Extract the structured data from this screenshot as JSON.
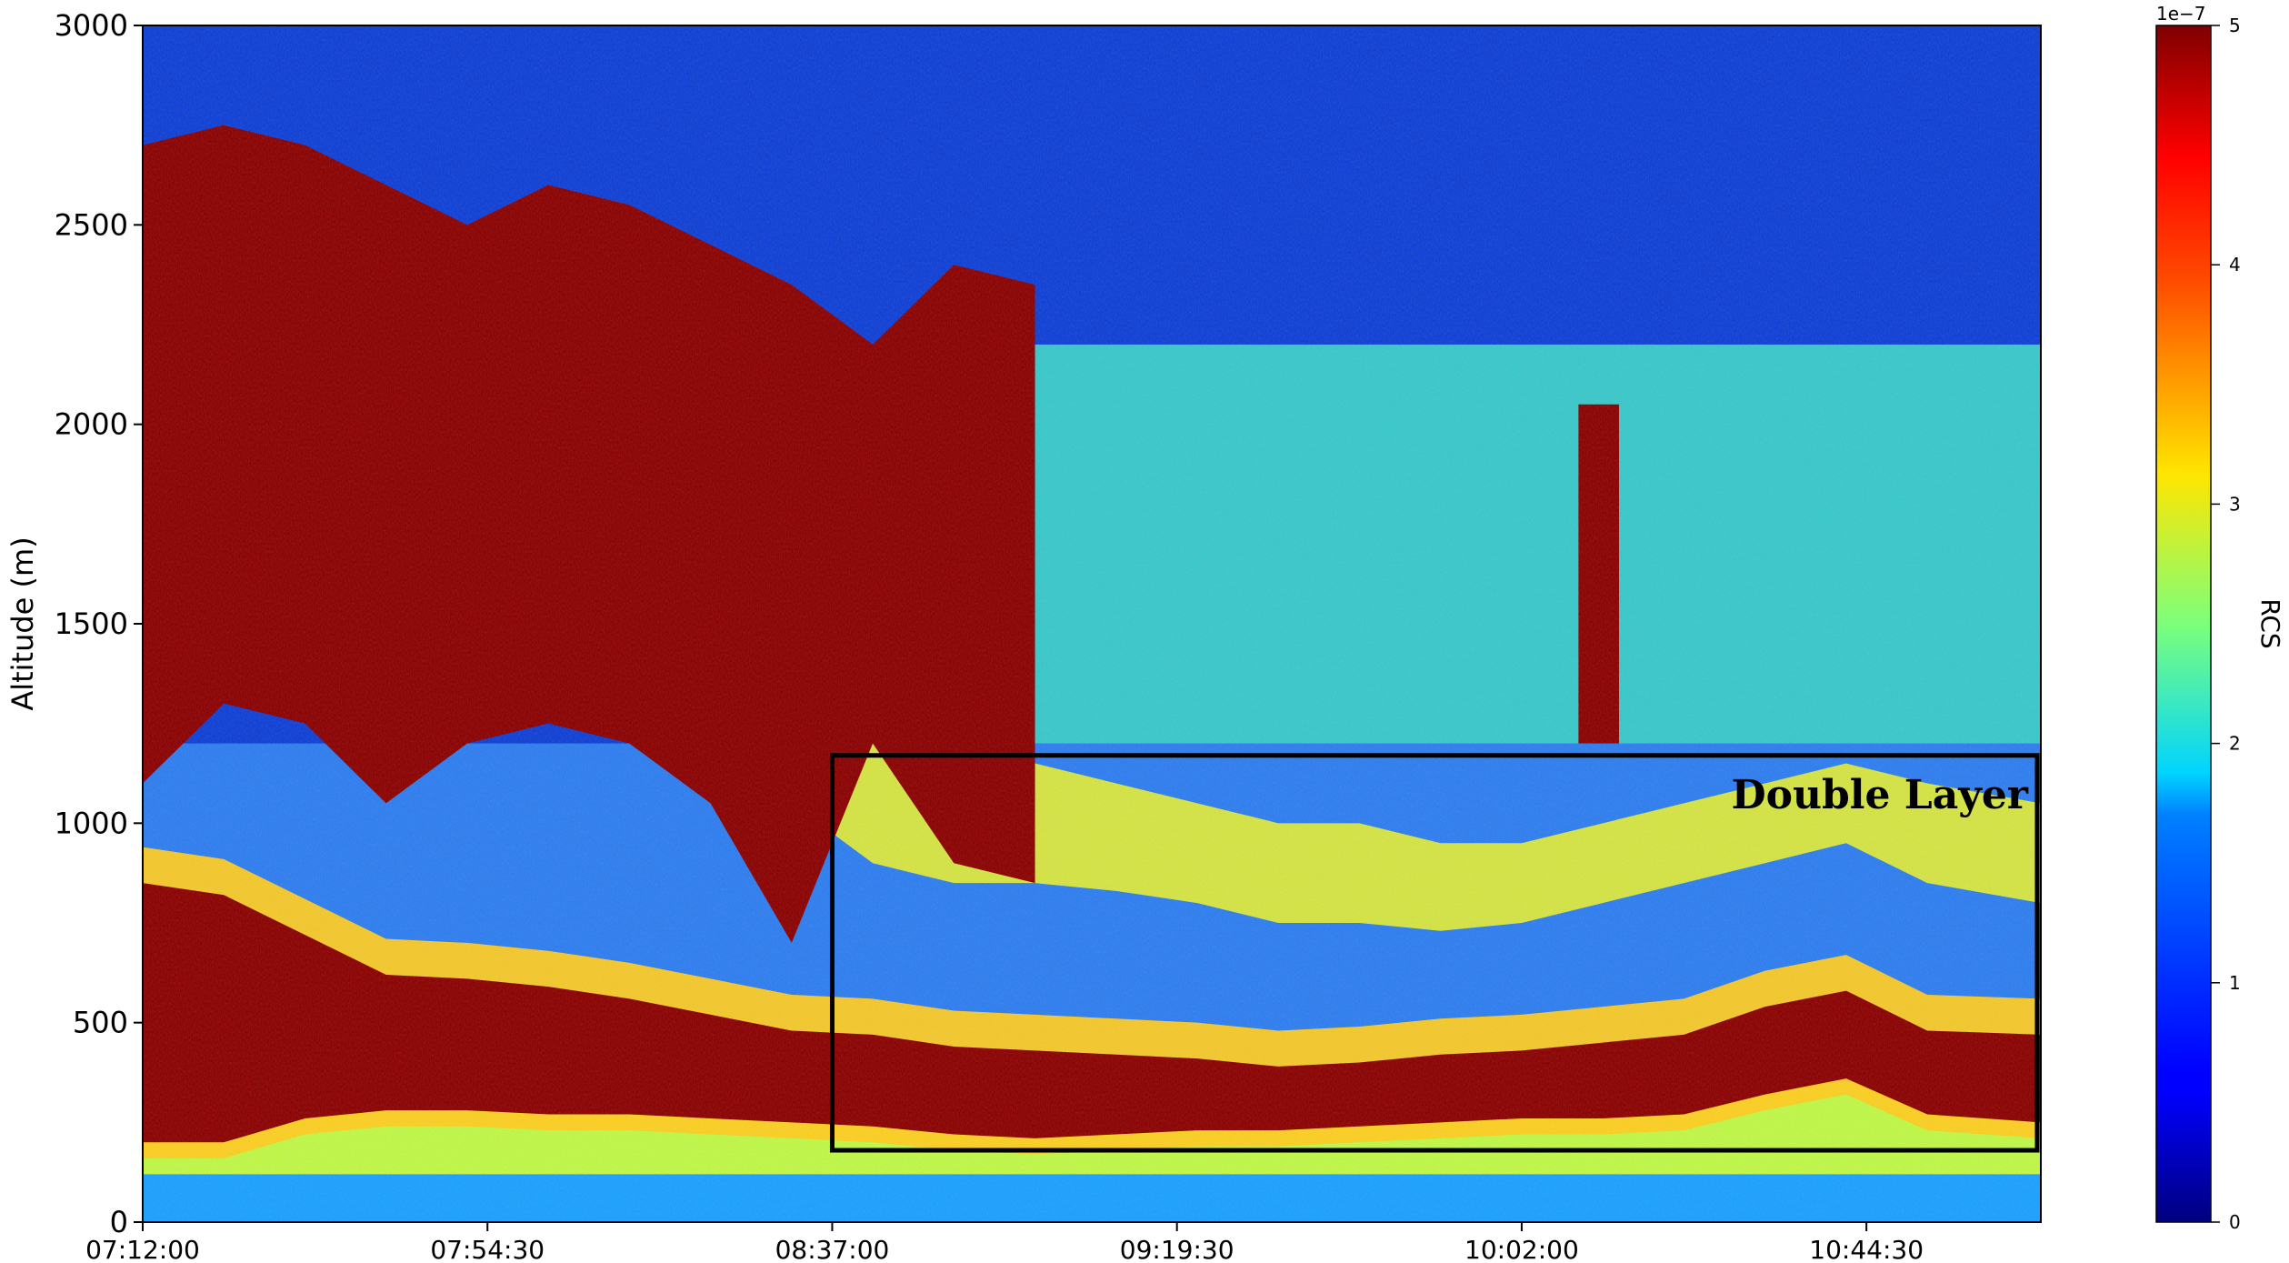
{
  "chart_data": {
    "type": "heatmap",
    "title": "",
    "xlabel": "",
    "ylabel": "Altitude (m)",
    "ylim": [
      0,
      3000
    ],
    "xlim": [
      "07:12:00",
      "11:06:00"
    ],
    "x_tick_labels": [
      "07:12:00",
      "07:54:30",
      "08:37:00",
      "09:19:30",
      "10:02:00",
      "10:44:30"
    ],
    "y_tick_labels": [
      "0",
      "500",
      "1000",
      "1500",
      "2000",
      "2500",
      "3000"
    ],
    "colormap": "jet",
    "colorbar": {
      "label": "RCS",
      "multiplier": "1e−7",
      "vmin": 0,
      "vmax": 5,
      "tick_labels": [
        "0",
        "1",
        "2",
        "3",
        "4",
        "5"
      ]
    },
    "time_minutes_from_start": [
      0,
      10,
      20,
      30,
      40,
      50,
      60,
      70,
      80,
      90,
      100,
      110,
      120,
      130,
      140,
      150,
      160,
      170,
      180,
      190,
      200,
      210,
      220,
      234
    ],
    "series": [
      {
        "name": "",
        "description_key": "saturated_cloud_layer",
        "region": "clouds",
        "bottom_m": [
          1100,
          1300,
          1250,
          1050,
          1200,
          1250,
          1200,
          1050,
          700,
          1200,
          900,
          850,
          null,
          null,
          null,
          null,
          null,
          null,
          null,
          null,
          null,
          null,
          null,
          null
        ],
        "top_m": [
          2700,
          2750,
          2700,
          2600,
          2500,
          2600,
          2550,
          2450,
          2350,
          2200,
          2400,
          2350,
          null,
          null,
          null,
          null,
          null,
          null,
          null,
          null,
          null,
          null,
          null,
          null
        ]
      },
      {
        "name": "",
        "description_key": "upper_aerosol_layer",
        "region": "aerosol",
        "top_m": [
          null,
          null,
          null,
          null,
          null,
          null,
          null,
          null,
          1500,
          1300,
          1200,
          1150,
          1100,
          1050,
          1000,
          1000,
          950,
          950,
          1000,
          1050,
          1100,
          1150,
          1100,
          1050
        ],
        "peak_m": [
          null,
          null,
          null,
          null,
          null,
          null,
          null,
          null,
          1200,
          1050,
          1000,
          1000,
          980,
          950,
          900,
          900,
          880,
          900,
          950,
          1000,
          1050,
          1100,
          1000,
          950
        ]
      },
      {
        "name": "",
        "description_key": "lower_dense_aerosol_layer",
        "region": "aerosol",
        "top_m": [
          850,
          820,
          720,
          620,
          610,
          590,
          560,
          520,
          480,
          470,
          440,
          430,
          420,
          410,
          390,
          400,
          420,
          430,
          450,
          470,
          540,
          580,
          480,
          470
        ],
        "bottom_m": [
          200,
          200,
          260,
          280,
          280,
          270,
          270,
          260,
          250,
          240,
          220,
          210,
          220,
          230,
          230,
          240,
          250,
          260,
          260,
          270,
          320,
          360,
          270,
          250
        ]
      },
      {
        "name": "",
        "description_key": "narrow_cloud_plume",
        "region": "clouds",
        "time_minutes": [
          177,
          182
        ],
        "bottom_m": 1200,
        "top_m": 2050
      }
    ],
    "annotations": [
      {
        "label": "Double Layer",
        "x_range": [
          "08:37:00",
          "11:06:00"
        ],
        "y_range_m": [
          180,
          1170
        ]
      }
    ]
  }
}
